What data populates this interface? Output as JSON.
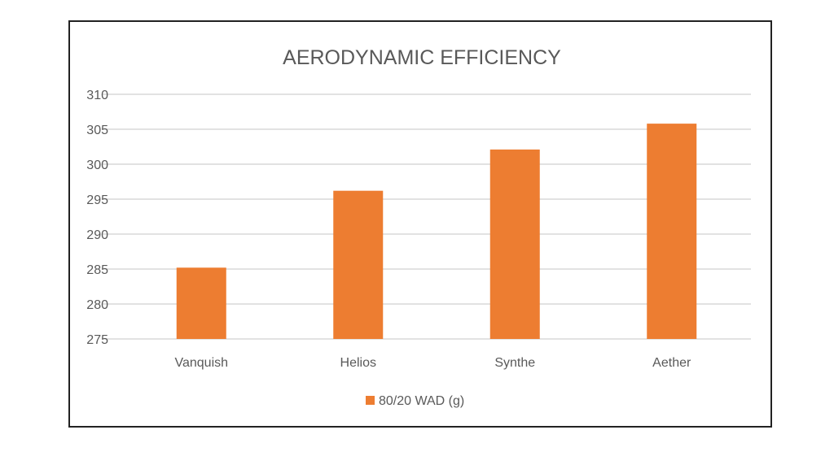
{
  "chart_data": {
    "type": "bar",
    "title": "AERODYNAMIC EFFICIENCY",
    "categories": [
      "Vanquish",
      "Helios",
      "Synthe",
      "Aether"
    ],
    "series": [
      {
        "name": "80/20 WAD (g)",
        "values": [
          285.2,
          296.2,
          302.1,
          305.8
        ],
        "color": "#ED7D31"
      }
    ],
    "xlabel": "",
    "ylabel": "",
    "ylim": [
      275,
      310
    ],
    "yticks": [
      275,
      280,
      285,
      290,
      295,
      300,
      305,
      310
    ],
    "grid": true,
    "legend": "bottom"
  }
}
